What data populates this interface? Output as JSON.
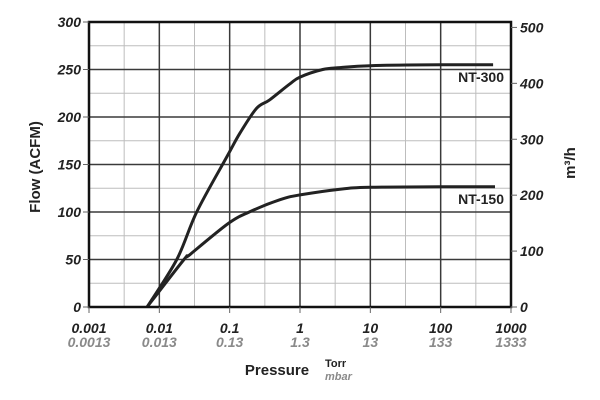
{
  "chart_data": {
    "type": "line",
    "title": "",
    "xlabel": "Pressure",
    "x_units": [
      "Torr",
      "mbar"
    ],
    "x_scale": "log",
    "xlim": [
      0.001,
      1000
    ],
    "x_ticks": [
      0.001,
      0.01,
      0.1,
      1,
      10,
      100,
      1000
    ],
    "x_tick_labels": [
      "0.001",
      "0.01",
      "0.1",
      "1",
      "10",
      "100",
      "1000"
    ],
    "x_tick_labels_secondary": [
      "0.0013",
      "0.013",
      "0.13",
      "1.3",
      "13",
      "133",
      "1333"
    ],
    "ylabel": "Flow (ACFM)",
    "ylim": [
      0,
      300
    ],
    "y_ticks": [
      0,
      50,
      100,
      150,
      200,
      250,
      300
    ],
    "y_tick_labels": [
      "0",
      "50",
      "100",
      "150",
      "200",
      "250",
      "300"
    ],
    "y2label": "m³/h",
    "y2lim": [
      0,
      509.7
    ],
    "y2_ticks": [
      0,
      100,
      200,
      300,
      400,
      500
    ],
    "y2_tick_labels": [
      "0",
      "100",
      "200",
      "300",
      "400",
      "500"
    ],
    "grid": true,
    "series": [
      {
        "name": "NT-300",
        "color": "#222222",
        "x": [
          0.0067,
          0.0177,
          0.034,
          0.091,
          0.14,
          0.24,
          0.37,
          0.72,
          1.0,
          2.1,
          3.7,
          10,
          100,
          556
        ],
        "y": [
          0,
          50,
          100,
          158,
          183,
          209,
          218,
          235,
          242,
          250,
          252,
          254,
          255,
          255
        ]
      },
      {
        "name": "NT-150",
        "color": "#222222",
        "x": [
          0.0067,
          0.0224,
          0.027,
          0.096,
          0.19,
          0.52,
          1.0,
          3.7,
          10,
          100,
          593
        ],
        "y": [
          0,
          50,
          55,
          88,
          100,
          113,
          118,
          124,
          126,
          126.5,
          126.5
        ]
      }
    ]
  }
}
